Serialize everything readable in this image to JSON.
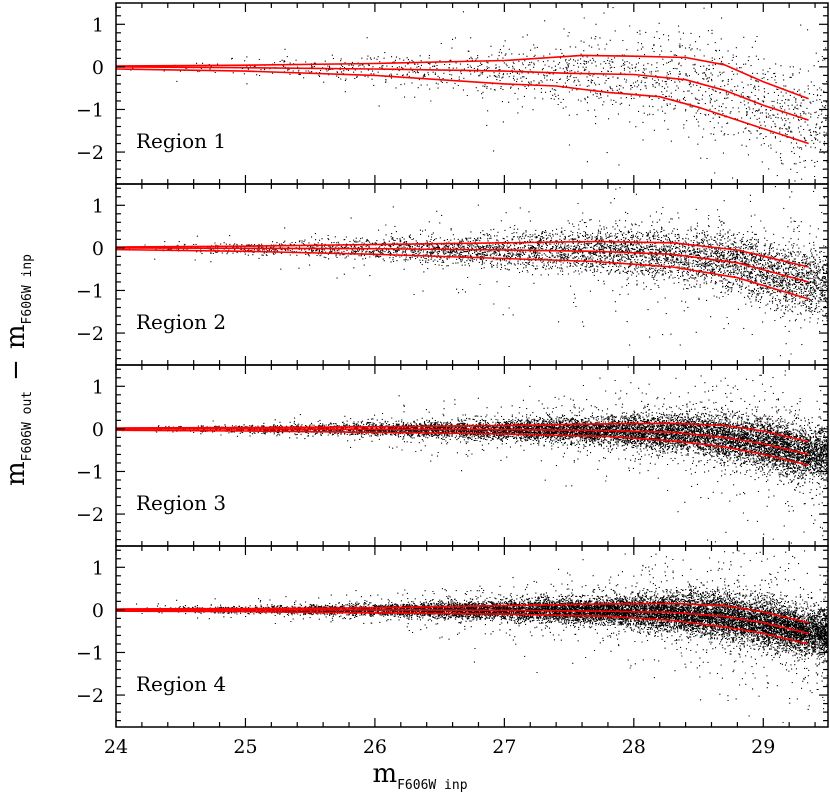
{
  "chart_data": {
    "type": "scatter",
    "xlabel": {
      "main": "m",
      "sub": "F606W inp"
    },
    "ylabel": {
      "main": "m",
      "sub": "F606W out",
      "minus": "−",
      "main2": "m",
      "sub2": "F606W inp"
    },
    "xlim": [
      24,
      29.5
    ],
    "ylim": [
      -2.75,
      1.5
    ],
    "xticks": [
      24,
      25,
      26,
      27,
      28,
      29
    ],
    "yticks": [
      1,
      0,
      -1,
      -2
    ],
    "point_color": "#000000",
    "curve_color": "#ff0000",
    "panels": [
      {
        "label": "Region 1",
        "density": 0.5,
        "curves": [
          {
            "name": "upper",
            "x": [
              24,
              25,
              26,
              27,
              27.6,
              28,
              28.4,
              28.7,
              29,
              29.35
            ],
            "y": [
              0.02,
              0.04,
              0.08,
              0.15,
              0.27,
              0.25,
              0.22,
              0.05,
              -0.35,
              -0.75
            ]
          },
          {
            "name": "median",
            "x": [
              24,
              25,
              26,
              27,
              27.5,
              28,
              28.4,
              28.7,
              29,
              29.35
            ],
            "y": [
              0,
              -0.02,
              -0.05,
              -0.1,
              -0.15,
              -0.18,
              -0.3,
              -0.55,
              -0.9,
              -1.25
            ]
          },
          {
            "name": "lower",
            "x": [
              24,
              25,
              26,
              27,
              27.4,
              27.8,
              28.2,
              28.5,
              28.8,
              29.1,
              29.35
            ],
            "y": [
              -0.05,
              -0.1,
              -0.2,
              -0.4,
              -0.45,
              -0.6,
              -0.7,
              -0.95,
              -1.25,
              -1.55,
              -1.8
            ]
          }
        ]
      },
      {
        "label": "Region 2",
        "density": 1.6,
        "curves": [
          {
            "name": "upper",
            "x": [
              24,
              25,
              26,
              27,
              27.7,
              28.3,
              28.8,
              29.35
            ],
            "y": [
              0.02,
              0.04,
              0.08,
              0.12,
              0.15,
              0.12,
              -0.05,
              -0.45
            ]
          },
          {
            "name": "median",
            "x": [
              24,
              25,
              26,
              27,
              27.7,
              28.3,
              28.8,
              29.35
            ],
            "y": [
              0,
              -0.01,
              -0.02,
              -0.05,
              -0.08,
              -0.15,
              -0.35,
              -0.8
            ]
          },
          {
            "name": "lower",
            "x": [
              24,
              25,
              26,
              27,
              27.7,
              28.3,
              28.8,
              29.35
            ],
            "y": [
              -0.04,
              -0.08,
              -0.15,
              -0.25,
              -0.32,
              -0.45,
              -0.7,
              -1.2
            ]
          }
        ]
      },
      {
        "label": "Region 3",
        "density": 3.2,
        "curves": [
          {
            "name": "upper",
            "x": [
              24,
              25,
              26,
              27,
              27.8,
              28.3,
              28.7,
              29,
              29.35
            ],
            "y": [
              0.02,
              0.03,
              0.05,
              0.08,
              0.12,
              0.13,
              0.08,
              -0.05,
              -0.3
            ]
          },
          {
            "name": "median",
            "x": [
              24,
              25,
              26,
              27,
              27.8,
              28.3,
              28.7,
              29,
              29.35
            ],
            "y": [
              0,
              0,
              -0.01,
              -0.02,
              -0.04,
              -0.08,
              -0.2,
              -0.35,
              -0.6
            ]
          },
          {
            "name": "lower",
            "x": [
              24,
              25,
              26,
              27,
              27.8,
              28.3,
              28.7,
              29,
              29.35
            ],
            "y": [
              -0.03,
              -0.05,
              -0.08,
              -0.12,
              -0.18,
              -0.28,
              -0.42,
              -0.6,
              -0.85
            ]
          }
        ]
      },
      {
        "label": "Region 4",
        "density": 4.2,
        "curves": [
          {
            "name": "upper",
            "x": [
              24,
              25,
              26,
              27,
              27.8,
              28.3,
              28.7,
              29,
              29.35
            ],
            "y": [
              0.02,
              0.03,
              0.05,
              0.1,
              0.14,
              0.15,
              0.1,
              -0.05,
              -0.3
            ]
          },
          {
            "name": "median",
            "x": [
              24,
              25,
              26,
              27,
              27.8,
              28.3,
              28.7,
              29,
              29.35
            ],
            "y": [
              0,
              0,
              0,
              -0.01,
              -0.03,
              -0.06,
              -0.15,
              -0.3,
              -0.55
            ]
          },
          {
            "name": "lower",
            "x": [
              24,
              25,
              26,
              27,
              27.8,
              28.3,
              28.7,
              29,
              29.35
            ],
            "y": [
              -0.03,
              -0.04,
              -0.07,
              -0.1,
              -0.15,
              -0.25,
              -0.4,
              -0.55,
              -0.8
            ]
          }
        ]
      }
    ]
  }
}
